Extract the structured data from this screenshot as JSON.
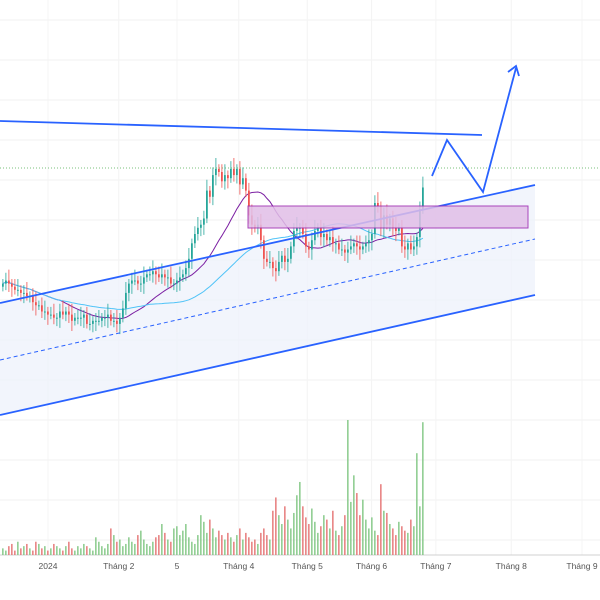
{
  "chart_data": {
    "type": "candlestick",
    "title": "",
    "xlabel": "",
    "ylabel": "",
    "grid": true,
    "x_ticks": [
      "2024",
      "Tháng 2",
      "5",
      "Tháng 4",
      "Tháng 5",
      "Tháng 6",
      "Tháng 7",
      "Tháng 8",
      "Tháng 9"
    ],
    "x_domain": [
      0,
      140
    ],
    "y_domain": [
      0,
      100
    ],
    "x_tick_positions": [
      11.2,
      27.7,
      41.3,
      55.7,
      71.7,
      86.7,
      101.7,
      119.3,
      135.8
    ],
    "price_series_close": [
      44,
      45,
      44,
      43,
      42,
      42,
      41,
      41,
      40,
      40,
      38,
      37,
      37,
      35,
      35,
      34,
      34,
      33,
      33,
      35,
      34,
      35,
      34,
      32,
      33,
      33,
      33,
      34,
      31,
      31,
      32,
      32,
      32,
      33,
      33,
      34,
      32,
      32,
      31,
      33,
      36,
      41,
      44,
      45,
      45,
      44,
      44,
      46,
      47,
      47,
      48,
      47,
      46,
      47,
      46,
      46,
      44,
      44,
      45,
      46,
      47,
      49,
      52,
      57,
      60,
      62,
      63,
      65,
      74,
      72,
      79,
      81,
      80,
      77,
      79,
      78,
      81,
      79,
      81,
      76,
      78,
      74,
      66,
      63,
      62,
      63,
      58,
      52,
      51,
      51,
      49,
      48,
      51,
      53,
      51,
      52,
      56,
      61,
      62,
      62,
      60,
      56,
      55,
      58,
      61,
      62,
      59,
      60,
      58,
      59,
      57,
      57,
      55,
      55,
      54,
      55,
      56,
      57,
      56,
      55,
      56,
      57,
      58,
      60,
      70,
      69,
      62,
      66,
      63,
      65,
      62,
      61,
      62,
      56,
      55,
      57,
      55,
      56,
      59,
      68,
      75
    ],
    "volume": [
      3,
      2,
      4,
      5,
      2,
      6,
      3,
      4,
      5,
      3,
      2,
      6,
      5,
      3,
      4,
      2,
      3,
      5,
      4,
      3,
      2,
      4,
      6,
      3,
      2,
      4,
      3,
      5,
      4,
      3,
      2,
      8,
      6,
      4,
      3,
      5,
      12,
      9,
      6,
      7,
      4,
      5,
      8,
      6,
      5,
      9,
      11,
      7,
      5,
      4,
      6,
      8,
      9,
      14,
      10,
      7,
      6,
      12,
      13,
      9,
      11,
      14,
      8,
      6,
      5,
      9,
      18,
      15,
      10,
      16,
      12,
      8,
      11,
      9,
      7,
      10,
      8,
      6,
      9,
      12,
      7,
      10,
      8,
      6,
      7,
      5,
      10,
      12,
      9,
      7,
      20,
      26,
      18,
      14,
      22,
      16,
      12,
      19,
      27,
      33,
      22,
      17,
      14,
      21,
      15,
      10,
      13,
      18,
      16,
      12,
      20,
      11,
      9,
      13,
      18,
      61,
      24,
      36,
      28,
      18,
      25,
      16,
      12,
      17,
      11,
      9,
      32,
      20,
      19,
      14,
      12,
      9,
      15,
      13,
      11,
      10,
      16,
      13,
      46,
      22,
      60
    ]
  },
  "annotation": {
    "price_line_color": "#4caf50",
    "channel_color": "#2962ff",
    "zone_color": "#9c27b0",
    "up_color": "#26a69a",
    "down_color": "#ef5350",
    "ma_short_color": "#7b1fa2",
    "ma_long_color": "#4fc3f7"
  }
}
